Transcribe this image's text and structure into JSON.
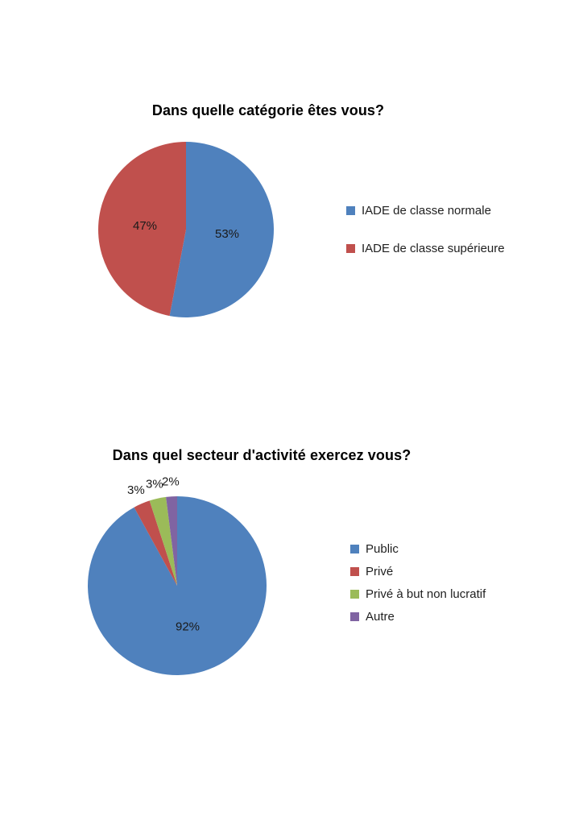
{
  "page": {
    "background_color": "#ffffff",
    "text_color": "#1f1f1f"
  },
  "chart_data": [
    {
      "type": "pie",
      "title": "Dans quelle catégorie êtes vous?",
      "categories": [
        "IADE de classe normale",
        "IADE de classe supérieure"
      ],
      "values": [
        53,
        47
      ],
      "labels": [
        "53%",
        "47%"
      ],
      "colors": [
        "#4f81bd",
        "#c0504d"
      ],
      "start_angle_deg": -90,
      "direction": "clockwise",
      "legend_position": "right",
      "data_labels": "percent"
    },
    {
      "type": "pie",
      "title": "Dans quel secteur d'activité exercez vous?",
      "categories": [
        "Public",
        "Privé",
        "Privé à but non lucratif",
        "Autre"
      ],
      "values": [
        92,
        3,
        3,
        2
      ],
      "labels": [
        "92%",
        "3%",
        "3%",
        "2%"
      ],
      "colors": [
        "#4f81bd",
        "#c0504d",
        "#9bbb59",
        "#8064a2"
      ],
      "start_angle_deg": -90,
      "direction": "clockwise",
      "legend_position": "right",
      "data_labels": "percent"
    }
  ]
}
